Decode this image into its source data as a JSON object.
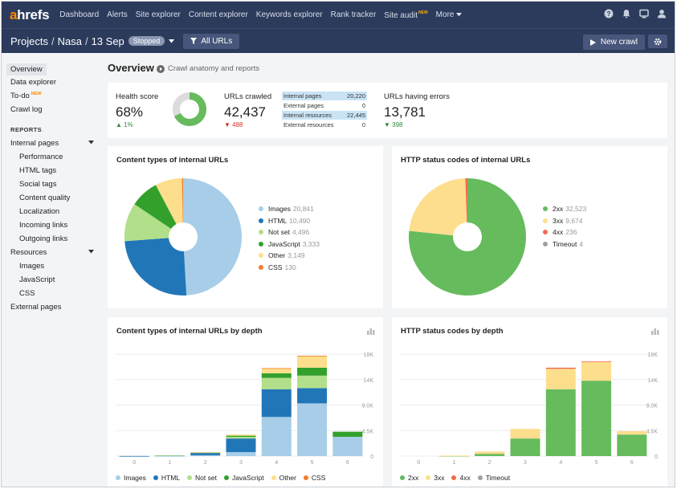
{
  "brand": {
    "logo_a": "a",
    "logo_rest": "hrefs"
  },
  "nav": {
    "items": [
      "Dashboard",
      "Alerts",
      "Site explorer",
      "Content explorer",
      "Keywords explorer",
      "Rank tracker",
      "Site audit",
      "More"
    ],
    "new_tag": "NEW"
  },
  "project": {
    "crumbs": [
      "Projects",
      "Nasa",
      "13 Sep"
    ],
    "status": "Stopped",
    "filter_label": "All URLs",
    "new_crawl_label": "New crawl"
  },
  "sidebar": {
    "top": [
      "Overview",
      "Data explorer",
      "To-do",
      "Crawl log"
    ],
    "todo_tag": "NEW",
    "reports_heading": "REPORTS",
    "internal_pages": "Internal pages",
    "internal_sub": [
      "Performance",
      "HTML tags",
      "Social tags",
      "Content quality",
      "Localization",
      "Incoming links",
      "Outgoing links"
    ],
    "resources": "Resources",
    "resources_sub": [
      "Images",
      "JavaScript",
      "CSS"
    ],
    "external_pages": "External pages"
  },
  "main": {
    "title": "Overview",
    "subtitle": "Crawl anatomy and reports"
  },
  "summary": {
    "health": {
      "label": "Health score",
      "value": "68%",
      "delta": "1%",
      "score": 68
    },
    "crawled": {
      "label": "URLs crawled",
      "value": "42,437",
      "delta": "488"
    },
    "breakdown": [
      {
        "name": "Internal pages",
        "value": "20,220",
        "highlight": true
      },
      {
        "name": "External pages",
        "value": "0",
        "highlight": false
      },
      {
        "name": "Internal resources",
        "value": "22,445",
        "highlight": true
      },
      {
        "name": "External resources",
        "value": "0",
        "highlight": false
      }
    ],
    "errors": {
      "label": "URLs having errors",
      "value": "13,781",
      "delta": "398"
    }
  },
  "colors": {
    "blue_light": "#a7cde8",
    "blue_dark": "#2176b8",
    "green_light": "#b2df8a",
    "green_dark": "#33a02c",
    "yellow": "#fdde8c",
    "orange": "#f47d2a",
    "green_status": "#66bb5d",
    "red_status": "#f06a4a",
    "grey": "#a0a0a0"
  },
  "chart_data": [
    {
      "type": "pie",
      "title": "Content types of internal URLs",
      "series": [
        {
          "name": "Images",
          "value": 20841,
          "label": "20,841",
          "color": "#a7cde8"
        },
        {
          "name": "HTML",
          "value": 10490,
          "label": "10,490",
          "color": "#2176b8"
        },
        {
          "name": "Not set",
          "value": 4496,
          "label": "4,496",
          "color": "#b2df8a"
        },
        {
          "name": "JavaScript",
          "value": 3333,
          "label": "3,333",
          "color": "#33a02c"
        },
        {
          "name": "Other",
          "value": 3149,
          "label": "3,149",
          "color": "#fdde8c"
        },
        {
          "name": "CSS",
          "value": 130,
          "label": "130",
          "color": "#f47d2a"
        }
      ]
    },
    {
      "type": "pie",
      "title": "HTTP status codes of internal URLs",
      "series": [
        {
          "name": "2xx",
          "value": 32523,
          "label": "32,523",
          "color": "#66bb5d"
        },
        {
          "name": "3xx",
          "value": 9674,
          "label": "9,674",
          "color": "#fdde8c"
        },
        {
          "name": "4xx",
          "value": 236,
          "label": "236",
          "color": "#f06a4a"
        },
        {
          "name": "Timeout",
          "value": 4,
          "label": "4",
          "color": "#a0a0a0"
        }
      ]
    },
    {
      "type": "bar",
      "stacked": true,
      "title": "Content types of internal URLs by depth",
      "categories": [
        "0",
        "1",
        "2",
        "3",
        "4",
        "5",
        "6"
      ],
      "y_ticks": [
        "0",
        "4.5K",
        "9.0K",
        "14K",
        "18K"
      ],
      "ylim": [
        0,
        18000
      ],
      "series": [
        {
          "name": "Images",
          "color": "#a7cde8",
          "values": [
            0,
            20,
            150,
            700,
            6900,
            9300,
            3400
          ]
        },
        {
          "name": "HTML",
          "color": "#2176b8",
          "values": [
            20,
            100,
            400,
            2400,
            4900,
            2700,
            0
          ]
        },
        {
          "name": "Not set",
          "color": "#b2df8a",
          "values": [
            0,
            20,
            100,
            300,
            2000,
            2200,
            0
          ]
        },
        {
          "name": "JavaScript",
          "color": "#33a02c",
          "values": [
            0,
            0,
            30,
            200,
            800,
            1400,
            900
          ]
        },
        {
          "name": "Other",
          "color": "#fdde8c",
          "values": [
            0,
            0,
            20,
            200,
            900,
            2100,
            0
          ]
        },
        {
          "name": "CSS",
          "color": "#f47d2a",
          "values": [
            0,
            0,
            0,
            0,
            20,
            20,
            0
          ]
        }
      ]
    },
    {
      "type": "bar",
      "stacked": true,
      "title": "HTTP status codes by depth",
      "categories": [
        "0",
        "1",
        "2",
        "3",
        "4",
        "5",
        "6"
      ],
      "y_ticks": [
        "0",
        "4.5K",
        "9.0K",
        "14K",
        "18K"
      ],
      "ylim": [
        0,
        18000
      ],
      "series": [
        {
          "name": "2xx",
          "color": "#66bb5d",
          "values": [
            0,
            50,
            400,
            3100,
            11800,
            13300,
            3800
          ]
        },
        {
          "name": "3xx",
          "color": "#fdde8c",
          "values": [
            0,
            50,
            400,
            1700,
            3600,
            3300,
            600
          ]
        },
        {
          "name": "4xx",
          "color": "#f06a4a",
          "values": [
            0,
            0,
            0,
            0,
            200,
            100,
            0
          ]
        },
        {
          "name": "Timeout",
          "color": "#a0a0a0",
          "values": [
            0,
            0,
            0,
            0,
            0,
            0,
            0
          ]
        }
      ]
    }
  ]
}
